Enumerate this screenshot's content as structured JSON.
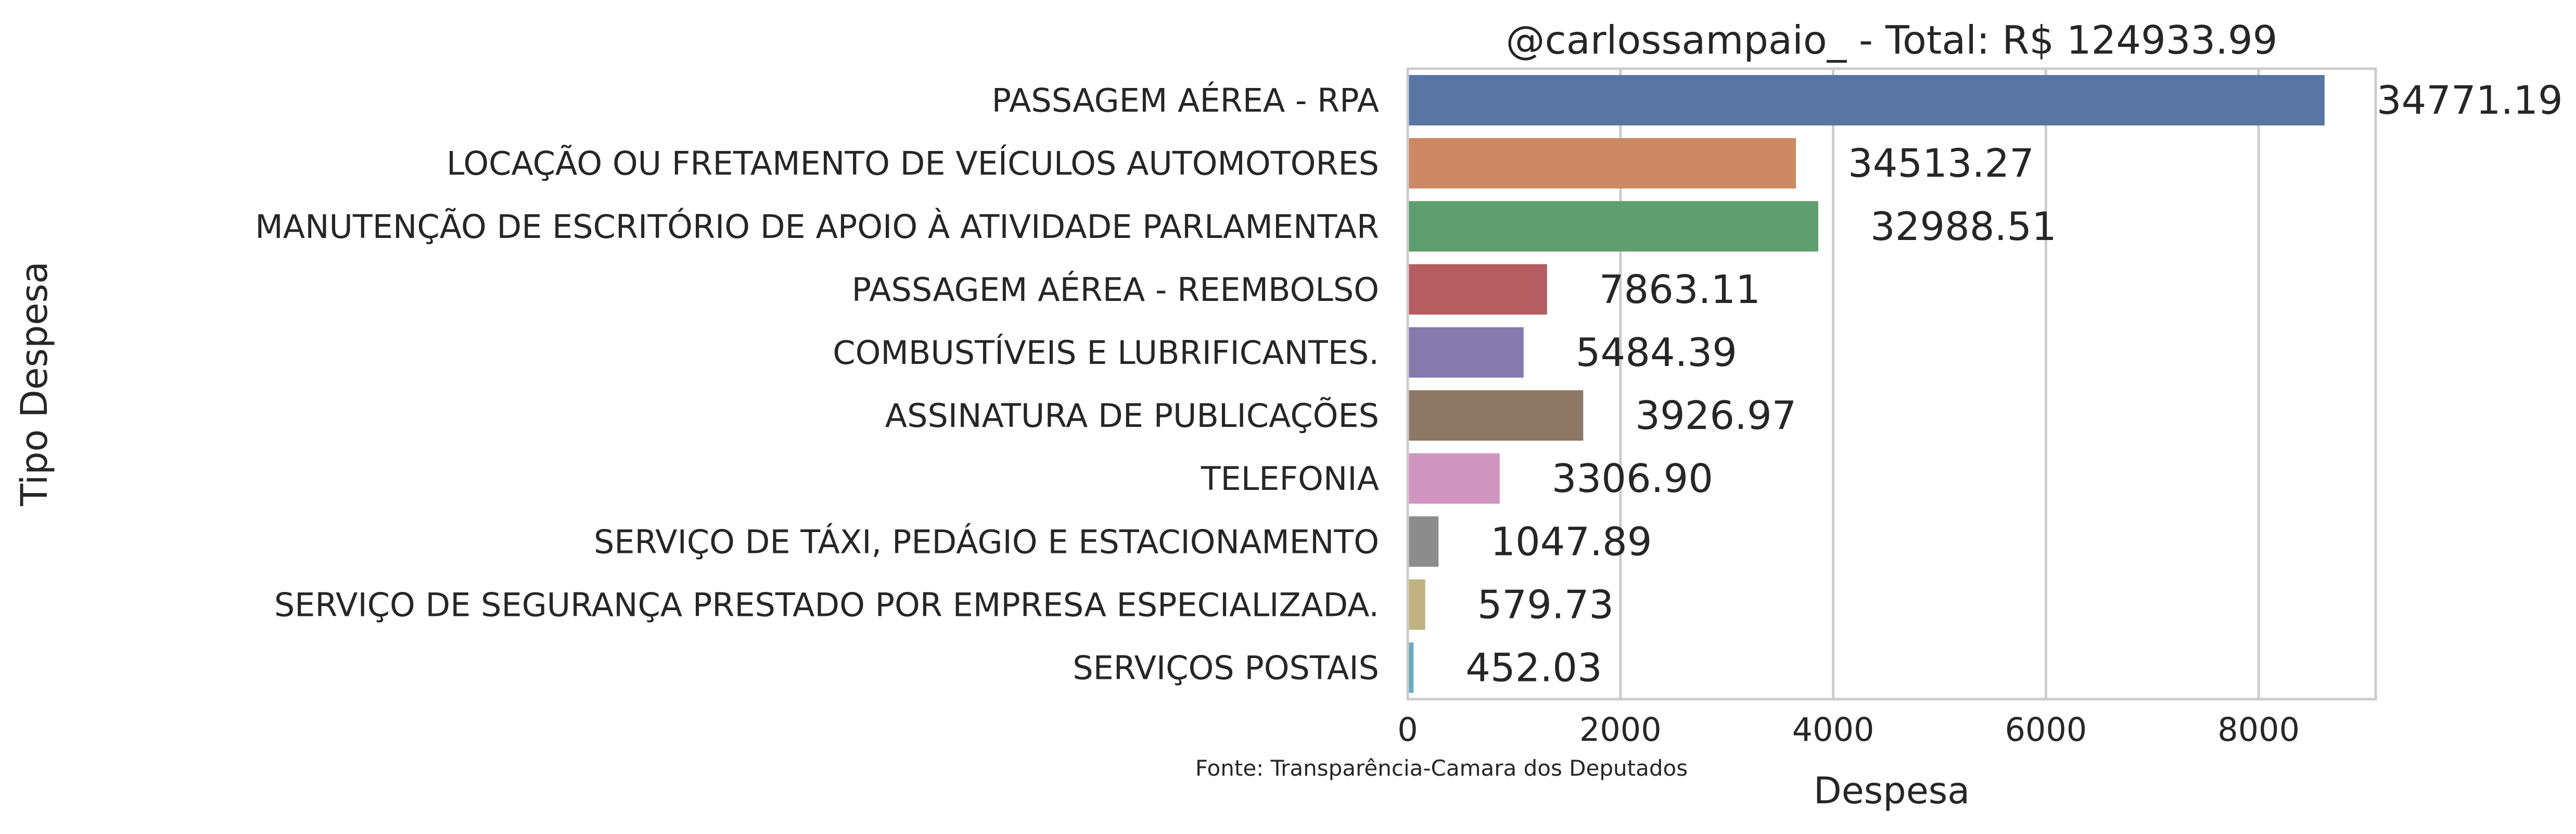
{
  "chart_data": {
    "type": "bar",
    "orientation": "horizontal",
    "title": "@carlossampaio_ - Total: R$ 124933.99",
    "xlabel": "Despesa",
    "ylabel": "Tipo Despesa",
    "source_note": "Fonte: Transparência-Camara dos Deputados",
    "xlim": [
      0,
      9100
    ],
    "xticks": [
      0,
      2000,
      4000,
      6000,
      8000
    ],
    "xtick_labels": [
      "0",
      "2000",
      "4000",
      "6000",
      "8000"
    ],
    "grid": true,
    "categories": [
      "PASSAGEM AÉREA - RPA",
      "LOCAÇÃO OU FRETAMENTO DE VEÍCULOS AUTOMOTORES",
      "MANUTENÇÃO DE ESCRITÓRIO DE APOIO À ATIVIDADE PARLAMENTAR",
      "PASSAGEM AÉREA - REEMBOLSO",
      "COMBUSTÍVEIS E LUBRIFICANTES.",
      "ASSINATURA DE PUBLICAÇÕES",
      "TELEFONIA",
      "SERVIÇO DE TÁXI, PEDÁGIO E ESTACIONAMENTO",
      "SERVIÇO DE SEGURANÇA PRESTADO POR EMPRESA ESPECIALIZADA.",
      "SERVIÇOS POSTAIS"
    ],
    "values": [
      8620,
      3650,
      3860,
      1310,
      1090,
      1650,
      865,
      290,
      165,
      55
    ],
    "value_labels": [
      "34771.19",
      "34513.27",
      "32988.51",
      "7863.11",
      "5484.39",
      "3926.97",
      "3306.90",
      "1047.89",
      "579.73",
      "452.03"
    ],
    "colors": [
      "#5875a4",
      "#cc8963",
      "#5f9e6e",
      "#b55d60",
      "#857aab",
      "#8d7866",
      "#d095bf",
      "#8c8c8c",
      "#c1b37f",
      "#6bacc3"
    ]
  }
}
